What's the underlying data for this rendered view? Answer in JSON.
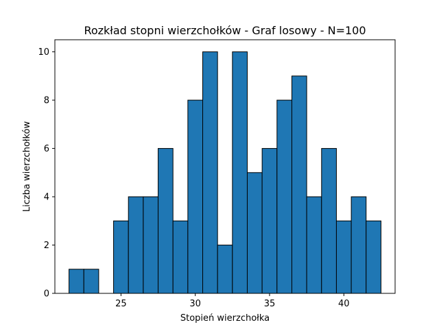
{
  "chart_data": {
    "type": "bar",
    "title": "Rozkład stopni wierzchołków - Graf losowy - N=100",
    "xlabel": "Stopień wierzchołka",
    "ylabel": "Liczba wierzchołków",
    "x": [
      22,
      23,
      24,
      25,
      26,
      27,
      28,
      29,
      30,
      31,
      32,
      33,
      34,
      35,
      36,
      37,
      38,
      39,
      40,
      41,
      42
    ],
    "values": [
      1,
      1,
      0,
      3,
      4,
      4,
      6,
      3,
      8,
      10,
      2,
      10,
      5,
      6,
      8,
      9,
      4,
      6,
      3,
      4,
      3
    ],
    "bin_width": 1,
    "xlim": [
      20.55,
      43.45
    ],
    "ylim": [
      0,
      10.5
    ],
    "xticks": [
      25,
      30,
      35,
      40
    ],
    "yticks": [
      0,
      2,
      4,
      6,
      8,
      10
    ],
    "bar_color": "#1f77b4",
    "edge_color": "#000000",
    "grid": false
  }
}
